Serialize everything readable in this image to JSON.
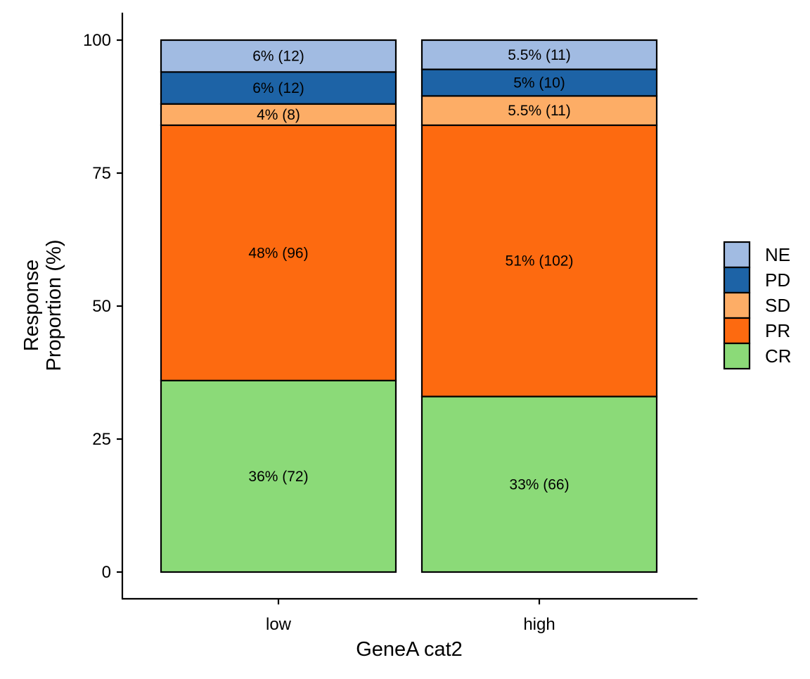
{
  "chart_data": {
    "type": "bar",
    "stacked": true,
    "title": "",
    "xlabel": "GeneA cat2",
    "ylabel_lines": [
      "Response",
      "Proportion (%)"
    ],
    "ylim": [
      0,
      100
    ],
    "yticks": [
      0,
      25,
      50,
      75,
      100
    ],
    "grid": false,
    "legend_position": "right",
    "categories": [
      "low",
      "high"
    ],
    "series": [
      {
        "name": "CR",
        "color": "#8BDA78",
        "values": [
          36,
          33
        ],
        "labels": [
          "36% (72)",
          "33% (66)"
        ]
      },
      {
        "name": "PR",
        "color": "#FD6A10",
        "values": [
          48,
          51
        ],
        "labels": [
          "48% (96)",
          "51% (102)"
        ]
      },
      {
        "name": "SD",
        "color": "#FDAD66",
        "values": [
          4,
          5.5
        ],
        "labels": [
          "4% (8)",
          "5.5% (11)"
        ]
      },
      {
        "name": "PD",
        "color": "#1D63A6",
        "values": [
          6,
          5
        ],
        "labels": [
          "6% (12)",
          "5% (10)"
        ]
      },
      {
        "name": "NE",
        "color": "#A1BBE2",
        "values": [
          6,
          5.5
        ],
        "labels": [
          "6% (12)",
          "5.5% (11)"
        ]
      }
    ],
    "legend_order": [
      "NE",
      "PD",
      "SD",
      "PR",
      "CR"
    ]
  }
}
